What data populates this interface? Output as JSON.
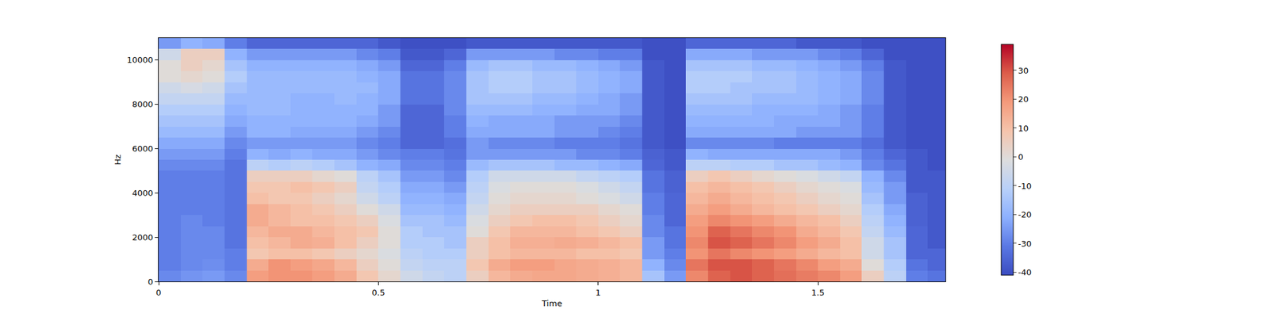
{
  "chart_data": {
    "type": "heatmap",
    "x_label": "Time",
    "y_label": "Hz",
    "xlim": [
      0,
      1.79
    ],
    "ylim": [
      0,
      11000
    ],
    "xticks": [
      0,
      0.5,
      1,
      1.5
    ],
    "yticks": [
      0,
      2000,
      4000,
      6000,
      8000,
      10000
    ],
    "colorbar": {
      "range": [
        -41,
        39
      ],
      "ticks": [
        -40,
        -30,
        -20,
        -10,
        0,
        10,
        20,
        30
      ]
    },
    "x": [
      0.025,
      0.075,
      0.125,
      0.175,
      0.225,
      0.275,
      0.325,
      0.375,
      0.425,
      0.475,
      0.525,
      0.575,
      0.625,
      0.675,
      0.725,
      0.775,
      0.825,
      0.875,
      0.925,
      0.975,
      1.025,
      1.075,
      1.125,
      1.175,
      1.225,
      1.275,
      1.325,
      1.375,
      1.425,
      1.475,
      1.525,
      1.575,
      1.625,
      1.675,
      1.725,
      1.775
    ],
    "y": [
      250,
      750,
      1250,
      1750,
      2250,
      2750,
      3250,
      3750,
      4250,
      4750,
      5250,
      5750,
      6250,
      6750,
      7250,
      7750,
      8250,
      8750,
      9250,
      9750,
      10250,
      10750
    ],
    "z": [
      [
        -28,
        -26,
        -25,
        -28,
        18,
        20,
        20,
        18,
        15,
        8,
        2,
        -5,
        -8,
        -10,
        5,
        12,
        15,
        16,
        16,
        15,
        14,
        12,
        -15,
        -25,
        22,
        28,
        30,
        28,
        26,
        24,
        22,
        18,
        5,
        -10,
        -30,
        -32
      ],
      [
        -30,
        -28,
        -27,
        -30,
        15,
        20,
        18,
        16,
        12,
        5,
        0,
        -8,
        -10,
        -10,
        8,
        15,
        18,
        18,
        16,
        15,
        14,
        12,
        -20,
        -28,
        25,
        30,
        30,
        28,
        25,
        22,
        18,
        15,
        0,
        -12,
        -32,
        -35
      ],
      [
        -30,
        -28,
        -28,
        -30,
        8,
        10,
        10,
        8,
        5,
        2,
        -2,
        -10,
        -12,
        -12,
        5,
        10,
        12,
        12,
        12,
        10,
        10,
        8,
        -25,
        -30,
        20,
        25,
        22,
        20,
        18,
        15,
        12,
        10,
        -5,
        -15,
        -35,
        -35
      ],
      [
        -30,
        -28,
        -28,
        -32,
        10,
        12,
        15,
        14,
        10,
        5,
        0,
        -12,
        -12,
        -15,
        5,
        10,
        14,
        14,
        15,
        14,
        12,
        10,
        -25,
        -32,
        22,
        30,
        28,
        25,
        22,
        18,
        15,
        10,
        -5,
        -15,
        -35,
        -38
      ],
      [
        -30,
        -28,
        -28,
        -32,
        12,
        15,
        15,
        12,
        10,
        8,
        0,
        -12,
        -15,
        -15,
        0,
        8,
        12,
        12,
        12,
        10,
        8,
        5,
        -28,
        -32,
        20,
        28,
        25,
        22,
        20,
        15,
        12,
        8,
        -8,
        -18,
        -35,
        -38
      ],
      [
        -30,
        -28,
        -30,
        -32,
        15,
        12,
        10,
        10,
        8,
        5,
        -2,
        -15,
        -15,
        -18,
        -2,
        5,
        8,
        10,
        10,
        8,
        5,
        2,
        -28,
        -35,
        18,
        22,
        20,
        18,
        15,
        12,
        10,
        5,
        -10,
        -20,
        -36,
        -38
      ],
      [
        -30,
        -30,
        -30,
        -32,
        15,
        12,
        10,
        8,
        5,
        0,
        -5,
        -18,
        -18,
        -20,
        -5,
        2,
        5,
        5,
        5,
        5,
        2,
        0,
        -30,
        -35,
        15,
        18,
        15,
        12,
        10,
        8,
        5,
        2,
        -12,
        -22,
        -36,
        -38
      ],
      [
        -30,
        -30,
        -30,
        -32,
        10,
        8,
        8,
        5,
        2,
        -5,
        -10,
        -20,
        -20,
        -22,
        -8,
        0,
        2,
        2,
        2,
        0,
        -2,
        -5,
        -30,
        -35,
        12,
        15,
        12,
        10,
        8,
        5,
        2,
        0,
        -15,
        -25,
        -36,
        -38
      ],
      [
        -30,
        -30,
        -30,
        -32,
        8,
        8,
        10,
        8,
        5,
        -8,
        -12,
        -22,
        -22,
        -25,
        -10,
        -2,
        0,
        0,
        0,
        -2,
        -5,
        -8,
        -32,
        -36,
        10,
        12,
        10,
        8,
        5,
        2,
        0,
        -2,
        -18,
        -25,
        -38,
        -38
      ],
      [
        -30,
        -30,
        -30,
        -32,
        5,
        5,
        5,
        2,
        0,
        -10,
        -15,
        -25,
        -25,
        -28,
        -12,
        -5,
        -5,
        -5,
        -5,
        -8,
        -10,
        -12,
        -32,
        -36,
        5,
        8,
        5,
        2,
        0,
        -2,
        -5,
        -8,
        -20,
        -28,
        -38,
        -38
      ],
      [
        -28,
        -28,
        -28,
        -32,
        -10,
        -12,
        -10,
        -12,
        -15,
        -20,
        -22,
        -28,
        -28,
        -30,
        -18,
        -15,
        -15,
        -15,
        -18,
        -18,
        -20,
        -22,
        -35,
        -38,
        -10,
        -10,
        -12,
        -12,
        -15,
        -15,
        -18,
        -20,
        -28,
        -32,
        -38,
        -40
      ],
      [
        -25,
        -25,
        -25,
        -30,
        -20,
        -22,
        -20,
        -22,
        -22,
        -25,
        -28,
        -30,
        -30,
        -32,
        -25,
        -25,
        -25,
        -25,
        -25,
        -28,
        -28,
        -30,
        -36,
        -38,
        -20,
        -22,
        -22,
        -22,
        -22,
        -22,
        -22,
        -25,
        -30,
        -35,
        -38,
        -40
      ],
      [
        -22,
        -22,
        -22,
        -28,
        -25,
        -25,
        -25,
        -25,
        -25,
        -28,
        -30,
        -35,
        -35,
        -33,
        -25,
        -28,
        -28,
        -28,
        -30,
        -30,
        -30,
        -32,
        -38,
        -40,
        -28,
        -28,
        -28,
        -28,
        -30,
        -30,
        -30,
        -30,
        -33,
        -38,
        -40,
        -40
      ],
      [
        -18,
        -18,
        -18,
        -25,
        -20,
        -20,
        -22,
        -22,
        -22,
        -25,
        -28,
        -35,
        -35,
        -30,
        -22,
        -22,
        -22,
        -22,
        -25,
        -25,
        -28,
        -30,
        -38,
        -40,
        -22,
        -22,
        -22,
        -22,
        -22,
        -25,
        -25,
        -25,
        -30,
        -38,
        -40,
        -40
      ],
      [
        -15,
        -15,
        -15,
        -22,
        -20,
        -20,
        -20,
        -20,
        -20,
        -22,
        -25,
        -35,
        -35,
        -30,
        -20,
        -22,
        -22,
        -22,
        -25,
        -25,
        -25,
        -28,
        -38,
        -40,
        -20,
        -20,
        -20,
        -20,
        -22,
        -22,
        -22,
        -25,
        -30,
        -38,
        -40,
        -40
      ],
      [
        -12,
        -12,
        -12,
        -20,
        -18,
        -18,
        -20,
        -20,
        -20,
        -20,
        -25,
        -35,
        -35,
        -28,
        -18,
        -18,
        -18,
        -20,
        -20,
        -22,
        -22,
        -25,
        -38,
        -40,
        -18,
        -18,
        -18,
        -20,
        -20,
        -20,
        -22,
        -25,
        -30,
        -38,
        -40,
        -40
      ],
      [
        -8,
        -8,
        -8,
        -18,
        -18,
        -18,
        -20,
        -20,
        -18,
        -20,
        -22,
        -32,
        -32,
        -28,
        -15,
        -15,
        -15,
        -18,
        -18,
        -20,
        -22,
        -25,
        -38,
        -40,
        -15,
        -15,
        -15,
        -18,
        -18,
        -18,
        -20,
        -22,
        -28,
        -38,
        -40,
        -40
      ],
      [
        -5,
        -3,
        -5,
        -15,
        -18,
        -18,
        -18,
        -18,
        -18,
        -18,
        -22,
        -32,
        -32,
        -28,
        -15,
        -12,
        -12,
        -15,
        -15,
        -18,
        -20,
        -22,
        -38,
        -40,
        -12,
        -12,
        -15,
        -15,
        -15,
        -18,
        -20,
        -22,
        -28,
        -38,
        -40,
        -40
      ],
      [
        0,
        2,
        0,
        -12,
        -18,
        -18,
        -18,
        -18,
        -18,
        -20,
        -22,
        -32,
        -32,
        -28,
        -15,
        -12,
        -12,
        -15,
        -15,
        -18,
        -20,
        -22,
        -38,
        -40,
        -12,
        -12,
        -12,
        -15,
        -15,
        -18,
        -20,
        -22,
        -28,
        -38,
        -40,
        -40
      ],
      [
        0,
        5,
        2,
        -15,
        -20,
        -20,
        -20,
        -20,
        -20,
        -22,
        -25,
        -35,
        -35,
        -30,
        -18,
        -15,
        -15,
        -18,
        -18,
        -20,
        -22,
        -25,
        -38,
        -40,
        -15,
        -15,
        -15,
        -18,
        -18,
        -20,
        -22,
        -25,
        -30,
        -38,
        -40,
        -40
      ],
      [
        -5,
        5,
        5,
        -20,
        -25,
        -25,
        -25,
        -25,
        -25,
        -28,
        -30,
        -38,
        -38,
        -35,
        -25,
        -25,
        -25,
        -25,
        -28,
        -28,
        -30,
        -30,
        -40,
        -40,
        -22,
        -22,
        -22,
        -25,
        -25,
        -25,
        -28,
        -30,
        -35,
        -40,
        -40,
        -40
      ],
      [
        -25,
        -20,
        -22,
        -30,
        -35,
        -35,
        -35,
        -35,
        -35,
        -35,
        -38,
        -40,
        -40,
        -40,
        -38,
        -38,
        -38,
        -38,
        -38,
        -38,
        -38,
        -38,
        -40,
        -40,
        -35,
        -35,
        -35,
        -35,
        -35,
        -38,
        -38,
        -38,
        -40,
        -40,
        -40,
        -40
      ]
    ]
  }
}
